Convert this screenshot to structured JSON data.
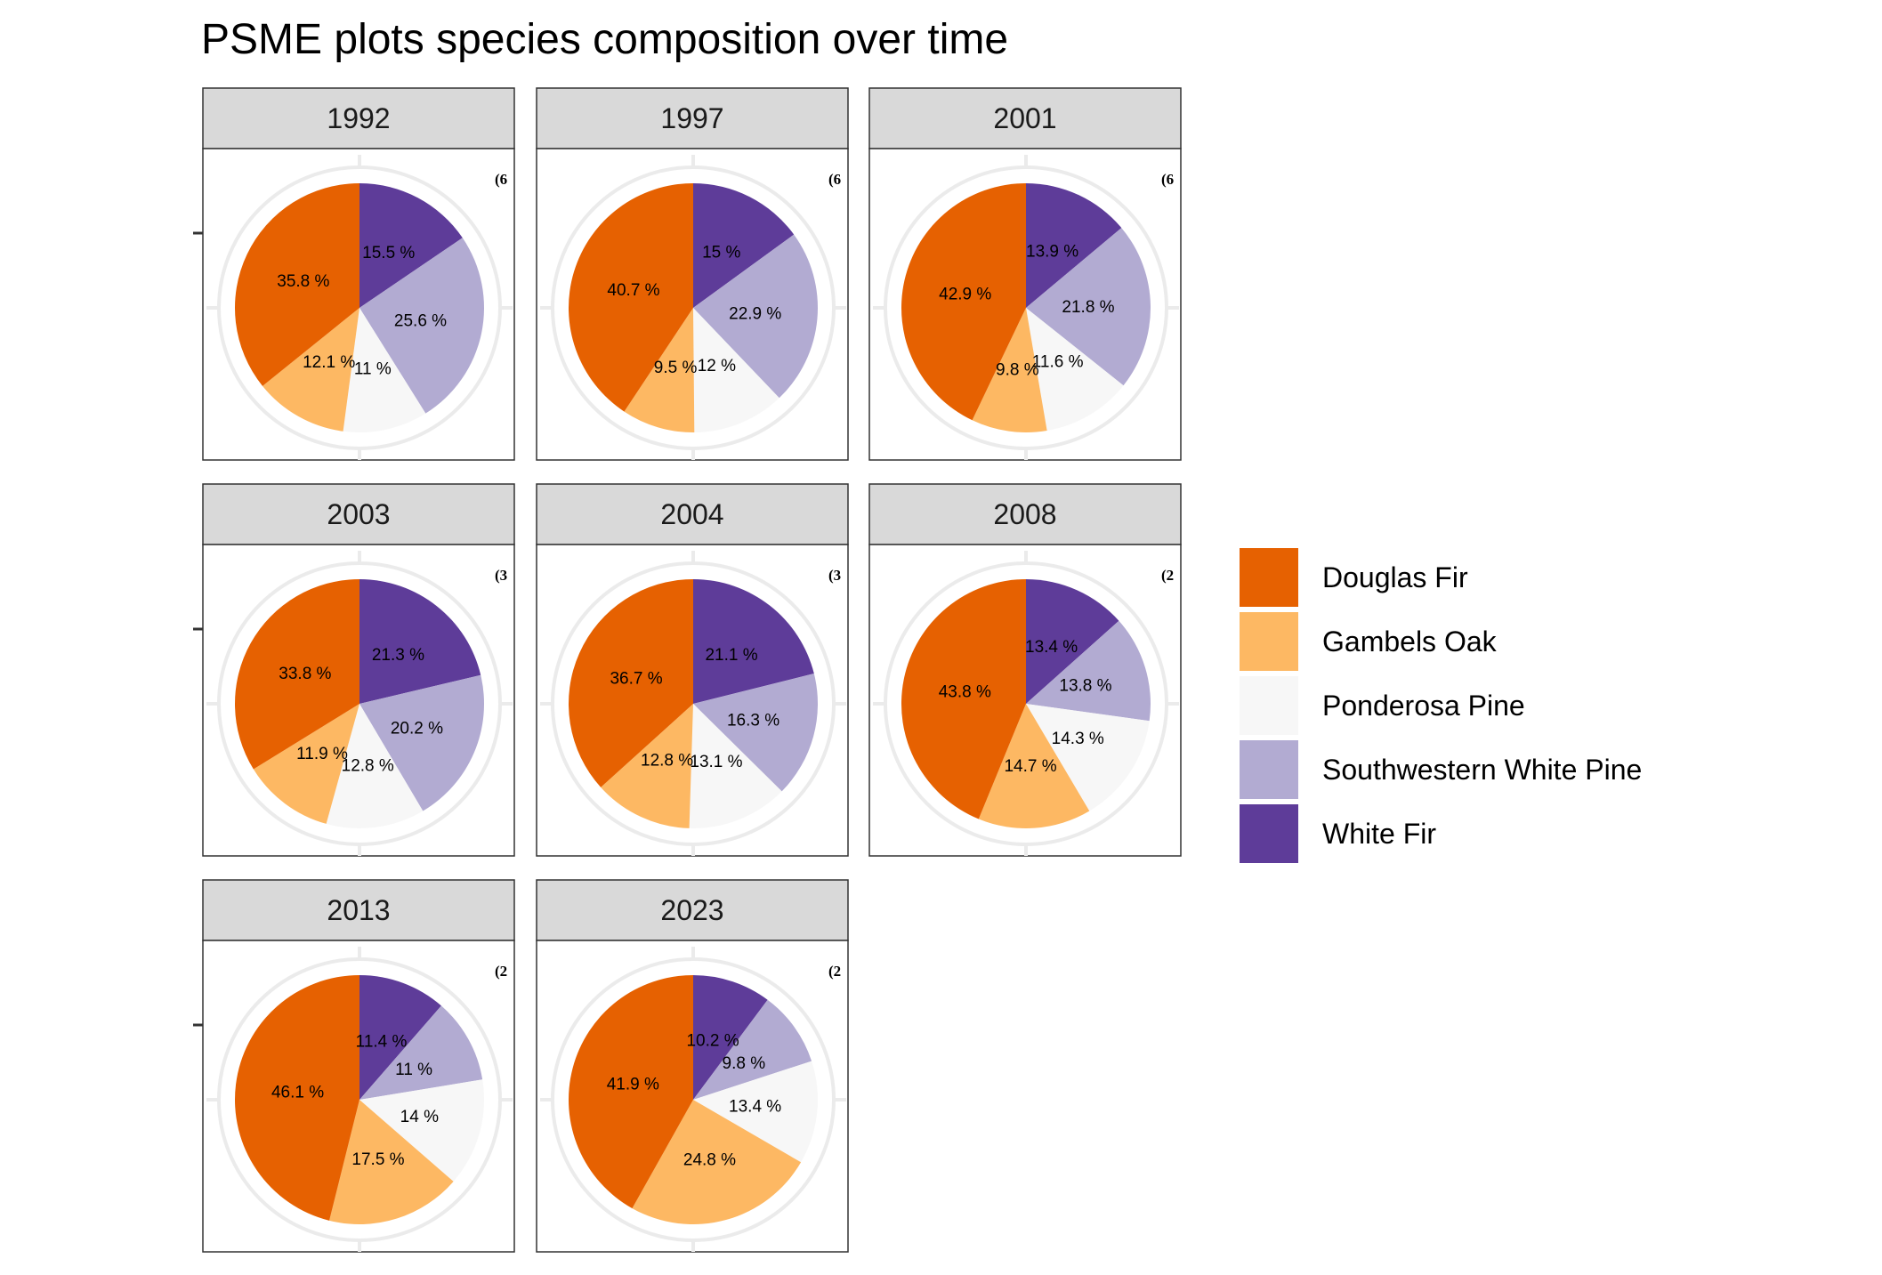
{
  "chart_data": {
    "type": "pie",
    "title": "PSME plots species composition over time",
    "categories": [
      "Douglas Fir",
      "Gambels Oak",
      "Ponderosa Pine",
      "Southwestern White Pine",
      "White Fir"
    ],
    "colors": {
      "Douglas Fir": "#e66101",
      "Gambels Oak": "#fdb863",
      "Ponderosa Pine": "#f7f7f7",
      "Southwestern White Pine": "#b2abd2",
      "White Fir": "#5e3c99"
    },
    "legend_position": "right",
    "slice_order_clockwise_from_top": [
      "White Fir",
      "Southwestern White Pine",
      "Ponderosa Pine",
      "Gambels Oak",
      "Douglas Fir"
    ],
    "panels": [
      {
        "year": "1992",
        "corner_label": "(6",
        "values": {
          "White Fir": 15.5,
          "Southwestern White Pine": 25.6,
          "Ponderosa Pine": 11,
          "Gambels Oak": 12.1,
          "Douglas Fir": 35.8
        },
        "labels": {
          "White Fir": "15.5 %",
          "Southwestern White Pine": "25.6 %",
          "Ponderosa Pine": "11 %",
          "Gambels Oak": "12.1 %",
          "Douglas Fir": "35.8 %"
        }
      },
      {
        "year": "1997",
        "corner_label": "(6",
        "values": {
          "White Fir": 15,
          "Southwestern White Pine": 22.9,
          "Ponderosa Pine": 12,
          "Gambels Oak": 9.5,
          "Douglas Fir": 40.7
        },
        "labels": {
          "White Fir": "15 %",
          "Southwestern White Pine": "22.9 %",
          "Ponderosa Pine": "12 %",
          "Gambels Oak": "9.5 %",
          "Douglas Fir": "40.7 %"
        }
      },
      {
        "year": "2001",
        "corner_label": "(6",
        "values": {
          "White Fir": 13.9,
          "Southwestern White Pine": 21.8,
          "Ponderosa Pine": 11.6,
          "Gambels Oak": 9.8,
          "Douglas Fir": 42.9
        },
        "labels": {
          "White Fir": "13.9 %",
          "Southwestern White Pine": "21.8 %",
          "Ponderosa Pine": "11.6 %",
          "Gambels Oak": "9.8 %",
          "Douglas Fir": "42.9 %"
        }
      },
      {
        "year": "2003",
        "corner_label": "(3",
        "values": {
          "White Fir": 21.3,
          "Southwestern White Pine": 20.2,
          "Ponderosa Pine": 12.8,
          "Gambels Oak": 11.9,
          "Douglas Fir": 33.8
        },
        "labels": {
          "White Fir": "21.3 %",
          "Southwestern White Pine": "20.2 %",
          "Ponderosa Pine": "12.8 %",
          "Gambels Oak": "11.9 %",
          "Douglas Fir": "33.8 %"
        }
      },
      {
        "year": "2004",
        "corner_label": "(3",
        "values": {
          "White Fir": 21.1,
          "Southwestern White Pine": 16.3,
          "Ponderosa Pine": 13.1,
          "Gambels Oak": 12.8,
          "Douglas Fir": 36.7
        },
        "labels": {
          "White Fir": "21.1 %",
          "Southwestern White Pine": "16.3 %",
          "Ponderosa Pine": "13.1 %",
          "Gambels Oak": "12.8 %",
          "Douglas Fir": "36.7 %"
        }
      },
      {
        "year": "2008",
        "corner_label": "(2",
        "values": {
          "White Fir": 13.4,
          "Southwestern White Pine": 13.8,
          "Ponderosa Pine": 14.3,
          "Gambels Oak": 14.7,
          "Douglas Fir": 43.8
        },
        "labels": {
          "White Fir": "13.4 %",
          "Southwestern White Pine": "13.8 %",
          "Ponderosa Pine": "14.3 %",
          "Gambels Oak": "14.7 %",
          "Douglas Fir": "43.8 %"
        }
      },
      {
        "year": "2013",
        "corner_label": "(2",
        "values": {
          "White Fir": 11.4,
          "Southwestern White Pine": 11,
          "Ponderosa Pine": 14,
          "Gambels Oak": 17.5,
          "Douglas Fir": 46.1
        },
        "labels": {
          "White Fir": "11.4 %",
          "Southwestern White Pine": "11 %",
          "Ponderosa Pine": "14 %",
          "Gambels Oak": "17.5 %",
          "Douglas Fir": "46.1 %"
        }
      },
      {
        "year": "2023",
        "corner_label": "(2",
        "values": {
          "White Fir": 10.2,
          "Southwestern White Pine": 9.8,
          "Ponderosa Pine": 13.4,
          "Gambels Oak": 24.8,
          "Douglas Fir": 41.9
        },
        "labels": {
          "White Fir": "10.2 %",
          "Southwestern White Pine": "9.8 %",
          "Ponderosa Pine": "13.4 %",
          "Gambels Oak": "24.8 %",
          "Douglas Fir": "41.9 %"
        }
      }
    ]
  }
}
